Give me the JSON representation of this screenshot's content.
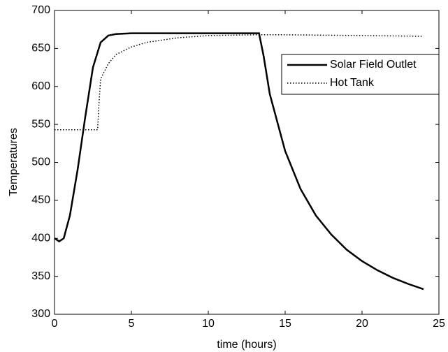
{
  "chart_data": {
    "type": "line",
    "xlabel": "time (hours)",
    "ylabel": "Temperatures",
    "xlim": [
      0,
      25
    ],
    "ylim": [
      300,
      700
    ],
    "xticks": [
      0,
      5,
      10,
      15,
      20,
      25
    ],
    "yticks": [
      300,
      350,
      400,
      450,
      500,
      550,
      600,
      650,
      700
    ],
    "grid": false,
    "legend": "upper right",
    "series": [
      {
        "name": "Solar Field Outlet",
        "color": "#000000",
        "linestyle": "solid",
        "x": [
          0,
          0.3,
          0.6,
          1,
          1.5,
          2,
          2.5,
          3,
          3.5,
          4,
          5,
          8,
          13,
          13.3,
          13.6,
          14,
          15,
          16,
          17,
          18,
          19,
          20,
          21,
          22,
          23,
          24
        ],
        "values": [
          400,
          396,
          400,
          430,
          490,
          560,
          625,
          658,
          667,
          669,
          670,
          670,
          670,
          670,
          640,
          590,
          515,
          465,
          430,
          405,
          385,
          370,
          358,
          348,
          340,
          333
        ]
      },
      {
        "name": "Hot Tank",
        "color": "#000000",
        "linestyle": "dotted",
        "x": [
          0,
          2.8,
          2.9,
          3,
          3.5,
          4,
          5,
          6,
          8,
          10,
          13,
          15,
          20,
          24
        ],
        "values": [
          543,
          543,
          580,
          610,
          630,
          642,
          652,
          658,
          664,
          667,
          668,
          668,
          667,
          666
        ]
      }
    ]
  }
}
